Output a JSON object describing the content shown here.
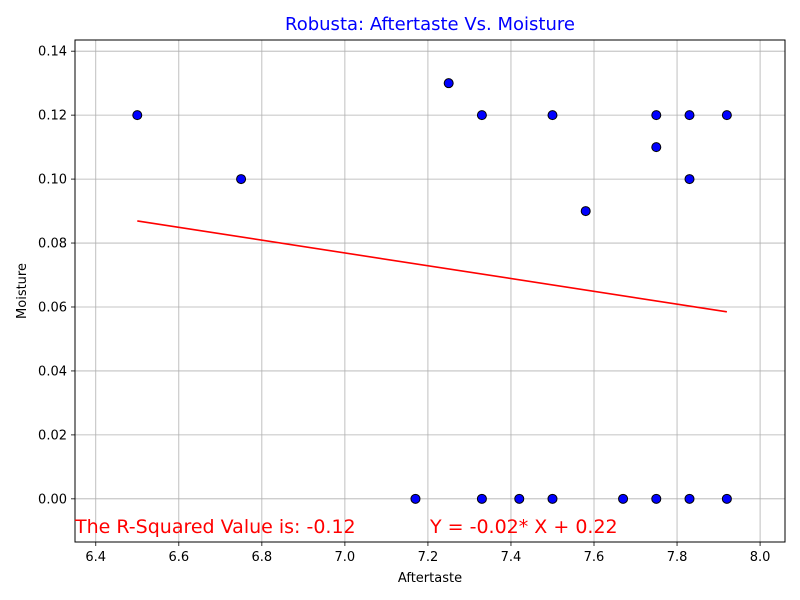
{
  "chart_data": {
    "type": "scatter",
    "title": "Robusta: Aftertaste Vs. Moisture",
    "xlabel": "Aftertaste",
    "ylabel": "Moisture",
    "xlim": [
      6.35,
      8.06
    ],
    "ylim": [
      -0.0135,
      0.1435
    ],
    "xticks": [
      "6.4",
      "6.6",
      "6.8",
      "7.0",
      "7.2",
      "7.4",
      "7.6",
      "7.8",
      "8.0"
    ],
    "yticks": [
      "0.00",
      "0.02",
      "0.04",
      "0.06",
      "0.08",
      "0.10",
      "0.12",
      "0.14"
    ],
    "grid": true,
    "series": [
      {
        "points": [
          {
            "x": 6.5,
            "y": 0.12
          },
          {
            "x": 6.75,
            "y": 0.1
          },
          {
            "x": 7.25,
            "y": 0.13
          },
          {
            "x": 7.33,
            "y": 0.12
          },
          {
            "x": 7.5,
            "y": 0.12
          },
          {
            "x": 7.58,
            "y": 0.09
          },
          {
            "x": 7.75,
            "y": 0.12
          },
          {
            "x": 7.75,
            "y": 0.11
          },
          {
            "x": 7.83,
            "y": 0.12
          },
          {
            "x": 7.83,
            "y": 0.1
          },
          {
            "x": 7.92,
            "y": 0.12
          },
          {
            "x": 7.17,
            "y": 0.0
          },
          {
            "x": 7.33,
            "y": 0.0
          },
          {
            "x": 7.42,
            "y": 0.0
          },
          {
            "x": 7.5,
            "y": 0.0
          },
          {
            "x": 7.67,
            "y": 0.0
          },
          {
            "x": 7.75,
            "y": 0.0
          },
          {
            "x": 7.83,
            "y": 0.0
          },
          {
            "x": 7.92,
            "y": 0.0
          }
        ],
        "color": "#0000ff",
        "edge_color": "#000000"
      }
    ],
    "regression_line": {
      "x": [
        6.5,
        7.92
      ],
      "y": [
        0.0869,
        0.0585
      ],
      "color": "#ff0000"
    },
    "annotations": [
      {
        "text": "The R-Squared Value is: -0.12",
        "color": "#ff0000"
      },
      {
        "text": "Y = -0.02* X + 0.22",
        "color": "#ff0000"
      }
    ],
    "title_color": "#0000ff"
  }
}
